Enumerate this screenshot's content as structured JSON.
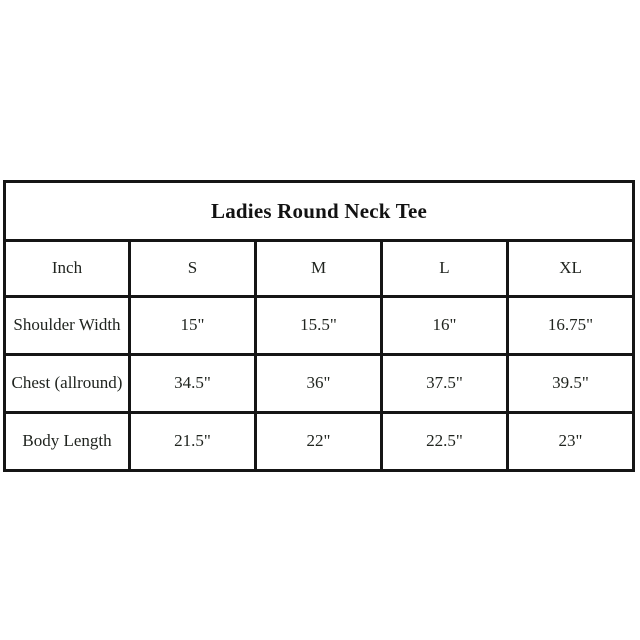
{
  "chart_data": {
    "type": "table",
    "title": "Ladies Round Neck Tee",
    "columns": [
      "Inch",
      "S",
      "M",
      "L",
      "XL"
    ],
    "rows": [
      {
        "label": "Shoulder Width",
        "values": [
          "15\"",
          "15.5\"",
          "16\"",
          "16.75\""
        ]
      },
      {
        "label": "Chest (allround)",
        "values": [
          "34.5\"",
          "36\"",
          "37.5\"",
          "39.5\""
        ]
      },
      {
        "label": "Body Length",
        "values": [
          "21.5\"",
          "22\"",
          "22.5\"",
          "23\""
        ]
      }
    ],
    "layout": {
      "legend": "none",
      "grid": "full black borders",
      "title_position": "spanning top row, centered"
    }
  },
  "colors": {
    "background": "#ffffff",
    "border": "#151515",
    "text": "#20241f",
    "title_text": "#121212"
  }
}
